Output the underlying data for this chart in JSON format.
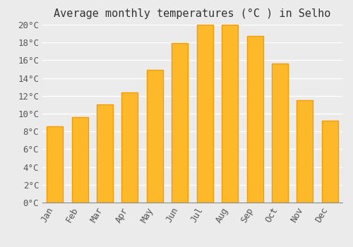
{
  "title": "Average monthly temperatures (°C ) in Selho",
  "months": [
    "Jan",
    "Feb",
    "Mar",
    "Apr",
    "May",
    "Jun",
    "Jul",
    "Aug",
    "Sep",
    "Oct",
    "Nov",
    "Dec"
  ],
  "values": [
    8.6,
    9.6,
    11.0,
    12.4,
    14.9,
    17.9,
    20.0,
    20.0,
    18.7,
    15.6,
    11.5,
    9.2
  ],
  "bar_color_main": "#FDB92A",
  "bar_color_edge": "#F59B00",
  "background_color": "#EBEBEB",
  "grid_color": "#FFFFFF",
  "ylim": [
    0,
    20
  ],
  "ytick_step": 2,
  "title_fontsize": 11,
  "tick_fontsize": 9,
  "font_family": "monospace"
}
